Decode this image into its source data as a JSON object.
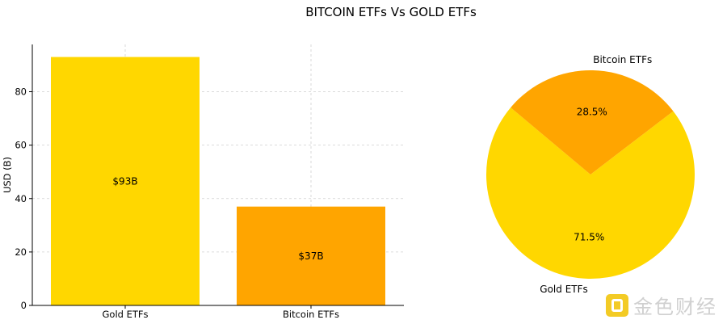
{
  "title": "BITCOIN ETFs Vs GOLD ETFs",
  "watermark": {
    "text": "金色财经"
  },
  "chart_data": [
    {
      "type": "bar",
      "categories": [
        "Gold ETFs",
        "Bitcoin ETFs"
      ],
      "values": [
        93,
        37
      ],
      "data_labels": [
        "$93B",
        "$37B"
      ],
      "colors": [
        "#ffd700",
        "#ffa500"
      ],
      "ylabel": "USD (B)",
      "ylim": [
        0,
        97.7
      ],
      "yticks": [
        0,
        20,
        40,
        60,
        80
      ],
      "grid": true
    },
    {
      "type": "pie",
      "labels": [
        "Gold ETFs",
        "Bitcoin ETFs"
      ],
      "values": [
        71.5,
        28.5
      ],
      "pct_labels": [
        "71.5%",
        "28.5%"
      ],
      "colors": [
        "#ffd700",
        "#ffa500"
      ],
      "startangle": 140
    }
  ]
}
